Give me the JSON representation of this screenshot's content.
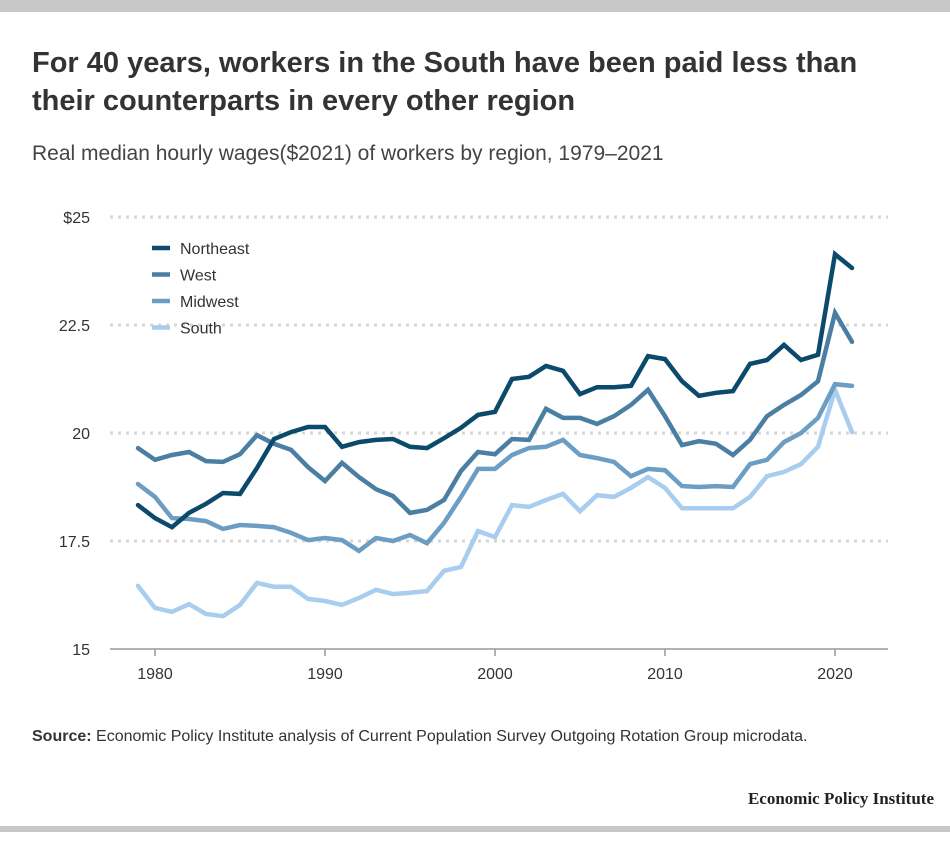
{
  "title": "For 40 years, workers in the South have been paid less than their counterparts in every other region",
  "subtitle": "Real median hourly wages($2021) of workers by region, 1979–2021",
  "source_label": "Source:",
  "source_text": "Economic Policy Institute analysis of Current Population Survey Outgoing Rotation Group microdata.",
  "logo": "Economic Policy Institute",
  "chart_data": {
    "type": "line",
    "title": "For 40 years, workers in the South have been paid less than their counterparts in every other region",
    "subtitle": "Real median hourly wages($2021) of workers by region, 1979–2021",
    "xlabel": "",
    "ylabel": "",
    "xlim": [
      1977,
      2023
    ],
    "ylim": [
      15,
      25
    ],
    "x_ticks": [
      1980,
      1990,
      2000,
      2010,
      2020
    ],
    "y_ticks": [
      15,
      17.5,
      20,
      22.5,
      25
    ],
    "y_tick_labels": [
      "15",
      "17.5",
      "20",
      "22.5",
      "$25"
    ],
    "grid": "horizontal dotted",
    "legend": "top-left",
    "x": [
      1979,
      1980,
      1981,
      1982,
      1983,
      1984,
      1985,
      1986,
      1987,
      1988,
      1989,
      1990,
      1991,
      1992,
      1993,
      1994,
      1995,
      1996,
      1997,
      1998,
      1999,
      2000,
      2001,
      2002,
      2003,
      2004,
      2005,
      2006,
      2007,
      2008,
      2009,
      2010,
      2011,
      2012,
      2013,
      2014,
      2015,
      2016,
      2017,
      2018,
      2019,
      2020,
      2021
    ],
    "series": [
      {
        "name": "Northeast",
        "color": "#0b4a6b",
        "values": [
          18.33,
          18.03,
          17.82,
          18.15,
          18.36,
          18.61,
          18.59,
          19.19,
          19.86,
          20.02,
          20.14,
          20.14,
          19.68,
          19.79,
          19.84,
          19.86,
          19.68,
          19.65,
          19.88,
          20.12,
          20.42,
          20.49,
          21.25,
          21.3,
          21.55,
          21.44,
          20.9,
          21.06,
          21.06,
          21.09,
          21.78,
          21.71,
          21.2,
          20.86,
          20.93,
          20.97,
          21.6,
          21.69,
          22.04,
          21.69,
          21.81,
          24.14,
          23.82
        ]
      },
      {
        "name": "West",
        "color": "#4a7fa3",
        "values": [
          19.65,
          19.38,
          19.49,
          19.56,
          19.35,
          19.33,
          19.51,
          19.95,
          19.75,
          19.61,
          19.21,
          18.89,
          19.31,
          18.98,
          18.7,
          18.54,
          18.15,
          18.22,
          18.45,
          19.12,
          19.56,
          19.51,
          19.86,
          19.84,
          20.56,
          20.35,
          20.35,
          20.21,
          20.39,
          20.65,
          21.0,
          20.39,
          19.72,
          19.81,
          19.75,
          19.49,
          19.84,
          20.39,
          20.65,
          20.88,
          21.2,
          22.78,
          22.11
        ]
      },
      {
        "name": "Midwest",
        "color": "#6c9dc3",
        "values": [
          18.82,
          18.52,
          18.03,
          18.01,
          17.96,
          17.78,
          17.87,
          17.85,
          17.82,
          17.69,
          17.52,
          17.57,
          17.52,
          17.27,
          17.57,
          17.5,
          17.64,
          17.45,
          17.92,
          18.52,
          19.17,
          19.17,
          19.49,
          19.65,
          19.68,
          19.84,
          19.49,
          19.42,
          19.33,
          19.0,
          19.17,
          19.14,
          18.77,
          18.75,
          18.77,
          18.75,
          19.28,
          19.38,
          19.79,
          20.0,
          20.35,
          21.13,
          21.09
        ]
      },
      {
        "name": "South",
        "color": "#a8cdee",
        "values": [
          16.46,
          15.95,
          15.86,
          16.04,
          15.81,
          15.76,
          16.02,
          16.53,
          16.44,
          16.44,
          16.16,
          16.11,
          16.02,
          16.18,
          16.37,
          16.27,
          16.3,
          16.34,
          16.81,
          16.9,
          17.73,
          17.59,
          18.33,
          18.29,
          18.45,
          18.59,
          18.19,
          18.56,
          18.52,
          18.73,
          18.98,
          18.73,
          18.26,
          18.26,
          18.26,
          18.26,
          18.52,
          19.0,
          19.1,
          19.28,
          19.68,
          21.0,
          20.02
        ]
      }
    ]
  }
}
